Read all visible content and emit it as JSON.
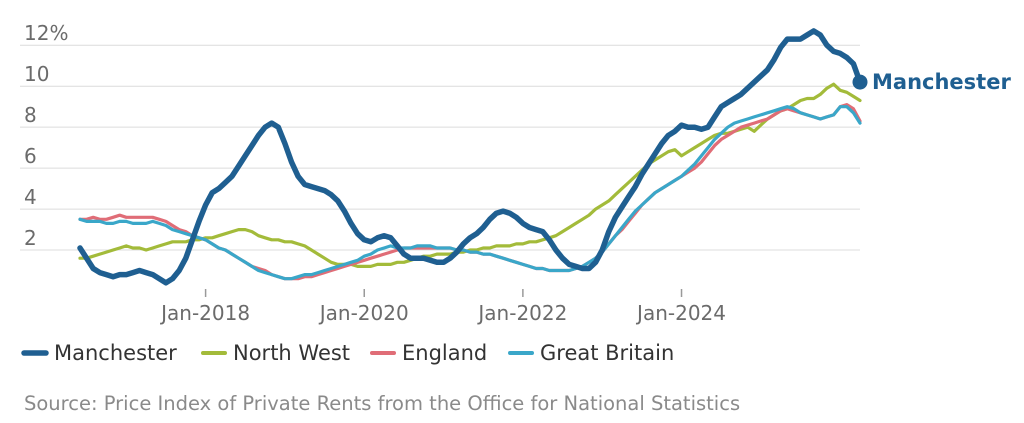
{
  "chart_data": {
    "type": "line",
    "x_unit": "month",
    "x_start": "2016-06",
    "x_end": "2024-12",
    "ylim": [
      0,
      12.5
    ],
    "y_ticks": [
      2,
      4,
      6,
      8,
      10,
      12
    ],
    "y_tick_labels": [
      "2",
      "4",
      "6",
      "8",
      "10",
      "12%"
    ],
    "x_ticks": [
      "2018-01",
      "2020-01",
      "2022-01",
      "2024-01"
    ],
    "x_tick_labels": [
      "Jan-2018",
      "Jan-2020",
      "Jan-2022",
      "Jan-2024"
    ],
    "grid": true,
    "legend_position": "bottom",
    "end_label": "Manchester",
    "series": [
      {
        "name": "Manchester",
        "color": "#1f5f91",
        "values": [
          2.1,
          1.6,
          1.1,
          0.9,
          0.8,
          0.7,
          0.8,
          0.8,
          0.9,
          1.0,
          0.9,
          0.8,
          0.6,
          0.4,
          0.6,
          1.0,
          1.6,
          2.5,
          3.4,
          4.2,
          4.8,
          5.0,
          5.3,
          5.6,
          6.1,
          6.6,
          7.1,
          7.6,
          8.0,
          8.2,
          8.0,
          7.2,
          6.3,
          5.6,
          5.2,
          5.1,
          5.0,
          4.9,
          4.7,
          4.4,
          3.9,
          3.3,
          2.8,
          2.5,
          2.4,
          2.6,
          2.7,
          2.6,
          2.2,
          1.8,
          1.6,
          1.6,
          1.6,
          1.5,
          1.4,
          1.4,
          1.6,
          1.9,
          2.3,
          2.6,
          2.8,
          3.1,
          3.5,
          3.8,
          3.9,
          3.8,
          3.6,
          3.3,
          3.1,
          3.0,
          2.9,
          2.5,
          2.0,
          1.6,
          1.3,
          1.2,
          1.1,
          1.1,
          1.4,
          2.0,
          2.9,
          3.6,
          4.1,
          4.6,
          5.1,
          5.7,
          6.2,
          6.7,
          7.2,
          7.6,
          7.8,
          8.1,
          8.0,
          8.0,
          7.9,
          8.0,
          8.5,
          9.0,
          9.2,
          9.4,
          9.6,
          9.9,
          10.2,
          10.5,
          10.8,
          11.3,
          11.9,
          12.3,
          12.3,
          12.3,
          12.5,
          12.7,
          12.5,
          12.0,
          11.7,
          11.6,
          11.4,
          11.1,
          10.2
        ]
      },
      {
        "name": "North West",
        "color": "#a3bb3a",
        "values": [
          1.6,
          1.6,
          1.7,
          1.8,
          1.9,
          2.0,
          2.1,
          2.2,
          2.1,
          2.1,
          2.0,
          2.1,
          2.2,
          2.3,
          2.4,
          2.4,
          2.4,
          2.5,
          2.5,
          2.6,
          2.6,
          2.7,
          2.8,
          2.9,
          3.0,
          3.0,
          2.9,
          2.7,
          2.6,
          2.5,
          2.5,
          2.4,
          2.4,
          2.3,
          2.2,
          2.0,
          1.8,
          1.6,
          1.4,
          1.3,
          1.3,
          1.3,
          1.2,
          1.2,
          1.2,
          1.3,
          1.3,
          1.3,
          1.4,
          1.4,
          1.5,
          1.6,
          1.7,
          1.7,
          1.8,
          1.8,
          1.8,
          1.9,
          1.9,
          2.0,
          2.0,
          2.1,
          2.1,
          2.2,
          2.2,
          2.2,
          2.3,
          2.3,
          2.4,
          2.4,
          2.5,
          2.6,
          2.7,
          2.9,
          3.1,
          3.3,
          3.5,
          3.7,
          4.0,
          4.2,
          4.4,
          4.7,
          5.0,
          5.3,
          5.6,
          5.9,
          6.2,
          6.4,
          6.6,
          6.8,
          6.9,
          6.6,
          6.8,
          7.0,
          7.2,
          7.4,
          7.6,
          7.7,
          7.7,
          7.8,
          7.9,
          8.0,
          7.8,
          8.1,
          8.4,
          8.6,
          8.8,
          8.9,
          9.1,
          9.3,
          9.4,
          9.4,
          9.6,
          9.9,
          10.1,
          9.8,
          9.7,
          9.5,
          9.3
        ]
      },
      {
        "name": "England",
        "color": "#e06d77",
        "values": [
          3.5,
          3.5,
          3.6,
          3.5,
          3.5,
          3.6,
          3.7,
          3.6,
          3.6,
          3.6,
          3.6,
          3.6,
          3.5,
          3.4,
          3.2,
          3.0,
          2.9,
          2.7,
          2.6,
          2.5,
          2.3,
          2.1,
          2.0,
          1.8,
          1.6,
          1.4,
          1.2,
          1.1,
          1.0,
          0.8,
          0.7,
          0.6,
          0.6,
          0.6,
          0.7,
          0.7,
          0.8,
          0.9,
          1.0,
          1.1,
          1.2,
          1.3,
          1.4,
          1.5,
          1.6,
          1.7,
          1.8,
          1.9,
          2.0,
          2.1,
          2.1,
          2.1,
          2.1,
          2.1,
          2.1,
          2.1,
          2.1,
          2.0,
          2.0,
          1.9,
          1.9,
          1.8,
          1.8,
          1.7,
          1.6,
          1.5,
          1.4,
          1.3,
          1.2,
          1.1,
          1.1,
          1.0,
          1.0,
          1.0,
          1.0,
          1.1,
          1.2,
          1.4,
          1.6,
          1.9,
          2.3,
          2.7,
          3.0,
          3.4,
          3.8,
          4.2,
          4.5,
          4.8,
          5.0,
          5.2,
          5.4,
          5.6,
          5.8,
          6.0,
          6.3,
          6.7,
          7.1,
          7.4,
          7.6,
          7.8,
          8.0,
          8.1,
          8.2,
          8.3,
          8.4,
          8.6,
          8.8,
          8.9,
          8.8,
          8.7,
          8.6,
          8.5,
          8.4,
          8.5,
          8.6,
          9.0,
          9.1,
          8.9,
          8.3
        ]
      },
      {
        "name": "Great Britain",
        "color": "#3aa7c9",
        "values": [
          3.5,
          3.4,
          3.4,
          3.4,
          3.3,
          3.3,
          3.4,
          3.4,
          3.3,
          3.3,
          3.3,
          3.4,
          3.3,
          3.2,
          3.0,
          2.9,
          2.8,
          2.7,
          2.6,
          2.5,
          2.3,
          2.1,
          2.0,
          1.8,
          1.6,
          1.4,
          1.2,
          1.0,
          0.9,
          0.8,
          0.7,
          0.6,
          0.6,
          0.7,
          0.8,
          0.8,
          0.9,
          1.0,
          1.1,
          1.2,
          1.3,
          1.4,
          1.5,
          1.7,
          1.8,
          2.0,
          2.1,
          2.2,
          2.1,
          2.1,
          2.1,
          2.2,
          2.2,
          2.2,
          2.1,
          2.1,
          2.1,
          2.0,
          2.0,
          1.9,
          1.9,
          1.8,
          1.8,
          1.7,
          1.6,
          1.5,
          1.4,
          1.3,
          1.2,
          1.1,
          1.1,
          1.0,
          1.0,
          1.0,
          1.0,
          1.1,
          1.2,
          1.4,
          1.6,
          1.9,
          2.3,
          2.7,
          3.1,
          3.5,
          3.9,
          4.2,
          4.5,
          4.8,
          5.0,
          5.2,
          5.4,
          5.6,
          5.9,
          6.2,
          6.6,
          7.0,
          7.4,
          7.7,
          8.0,
          8.2,
          8.3,
          8.4,
          8.5,
          8.6,
          8.7,
          8.8,
          8.9,
          9.0,
          8.9,
          8.7,
          8.6,
          8.5,
          8.4,
          8.5,
          8.6,
          9.0,
          9.0,
          8.7,
          8.2
        ]
      }
    ]
  },
  "source": "Source: Price Index of Private Rents from the Office for National Statistics"
}
